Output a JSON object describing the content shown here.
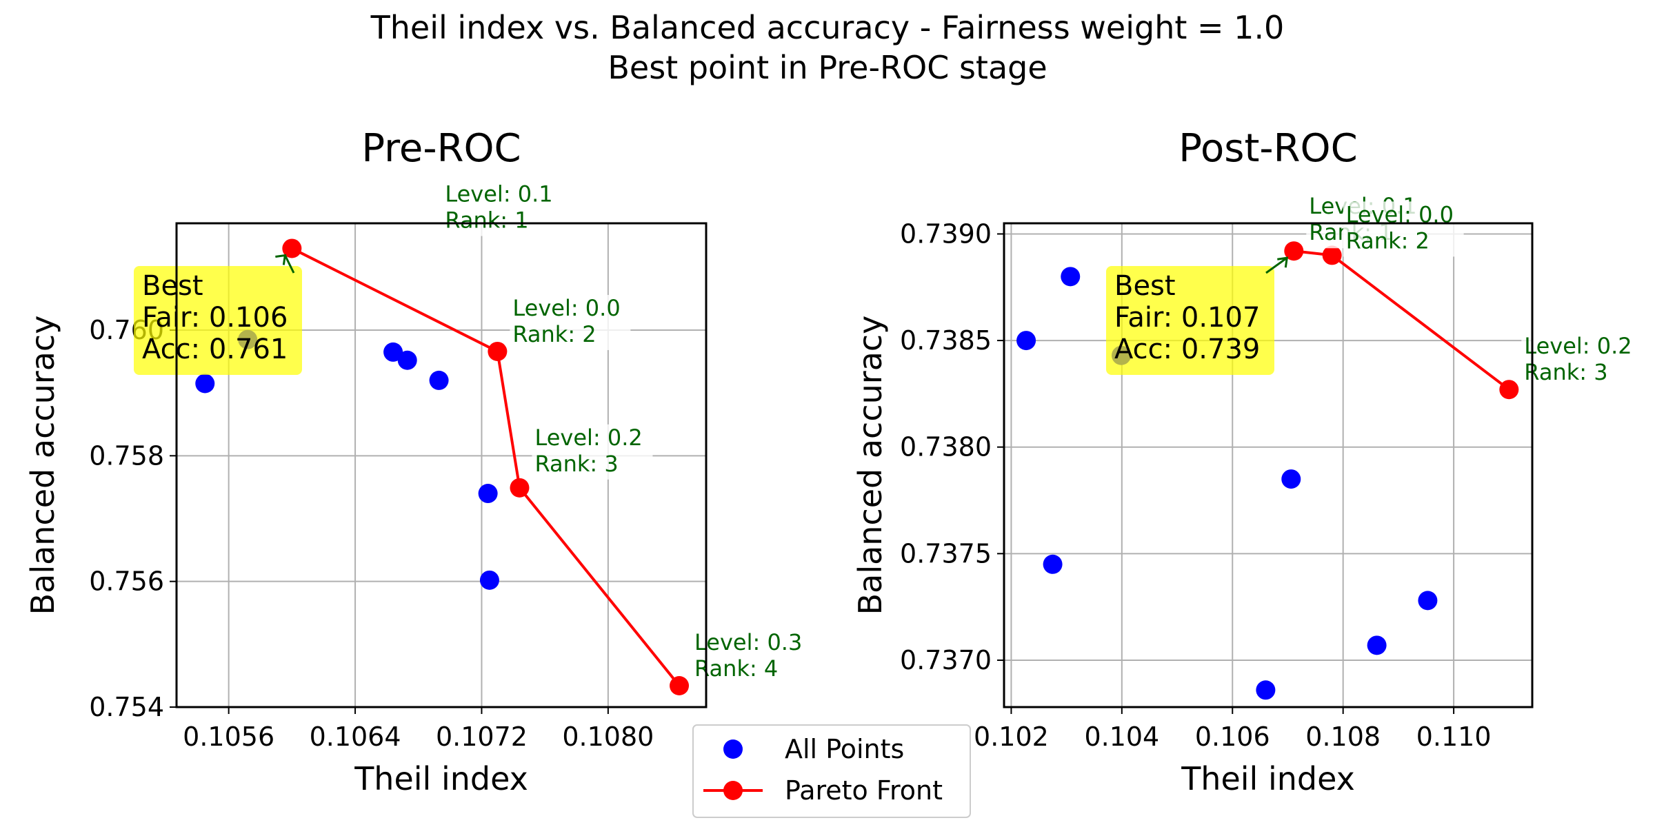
{
  "figure": {
    "suptitle_line1": "Theil index vs. Balanced accuracy - Fairness weight = 1.0",
    "suptitle_line2": "Best point in Pre-ROC stage"
  },
  "colors": {
    "all_points": "#0000ff",
    "pareto": "#ff0000",
    "annotation_text": "#006400",
    "best_box": "#ffff00",
    "grid": "#b0b0b0",
    "axes": "#000000"
  },
  "legend": {
    "all_points_label": "All Points",
    "pareto_label": "Pareto Front",
    "placement": "bottom-center"
  },
  "chart_data": [
    {
      "type": "scatter",
      "title": "Pre-ROC",
      "xlabel": "Theil index",
      "ylabel": "Balanced accuracy",
      "xlim": [
        0.10527,
        0.10862
      ],
      "ylim": [
        0.754,
        0.7617
      ],
      "xticks": [
        0.1056,
        0.1064,
        0.1072,
        0.108
      ],
      "xtick_labels": [
        "0.1056",
        "0.1064",
        "0.1072",
        "0.1080"
      ],
      "yticks": [
        0.754,
        0.756,
        0.758,
        0.76
      ],
      "ytick_labels": [
        "0.754",
        "0.756",
        "0.758",
        "0.760"
      ],
      "grid": true,
      "series": [
        {
          "name": "All Points",
          "points": [
            {
              "x": 0.10545,
              "y": 0.75915
            },
            {
              "x": 0.10572,
              "y": 0.75985
            },
            {
              "x": 0.10664,
              "y": 0.75965
            },
            {
              "x": 0.10673,
              "y": 0.75952
            },
            {
              "x": 0.10693,
              "y": 0.7592
            },
            {
              "x": 0.10724,
              "y": 0.7574
            },
            {
              "x": 0.10725,
              "y": 0.75602
            }
          ]
        },
        {
          "name": "Pareto Front",
          "points": [
            {
              "x": 0.106,
              "y": 0.7613
            },
            {
              "x": 0.1073,
              "y": 0.75966
            },
            {
              "x": 0.10744,
              "y": 0.75749
            },
            {
              "x": 0.10845,
              "y": 0.75434
            }
          ]
        }
      ],
      "annotations": [
        {
          "level": "Level: 0.1",
          "rank": "Rank: 1",
          "x": 0.106,
          "y": 0.7613
        },
        {
          "level": "Level: 0.0",
          "rank": "Rank: 2",
          "x": 0.1073,
          "y": 0.75966
        },
        {
          "level": "Level: 0.2",
          "rank": "Rank: 3",
          "x": 0.10744,
          "y": 0.75749
        },
        {
          "level": "Level: 0.3",
          "rank": "Rank: 4",
          "x": 0.10845,
          "y": 0.75434
        }
      ],
      "best": {
        "line1": "Best",
        "line2": "Fair: 0.106",
        "line3": "Acc: 0.761",
        "x": 0.106,
        "y": 0.7613
      }
    },
    {
      "type": "scatter",
      "title": "Post-ROC",
      "xlabel": "Theil index",
      "ylabel": "Balanced accuracy",
      "xlim": [
        0.10187,
        0.11142
      ],
      "ylim": [
        0.73678,
        0.73905
      ],
      "xticks": [
        0.102,
        0.104,
        0.106,
        0.108,
        0.11
      ],
      "xtick_labels": [
        "0.102",
        "0.104",
        "0.106",
        "0.108",
        "0.110"
      ],
      "yticks": [
        0.737,
        0.7375,
        0.738,
        0.7385,
        0.739
      ],
      "ytick_labels": [
        "0.7370",
        "0.7375",
        "0.7380",
        "0.7385",
        "0.7390"
      ],
      "grid": true,
      "series": [
        {
          "name": "All Points",
          "points": [
            {
              "x": 0.10227,
              "y": 0.7385
            },
            {
              "x": 0.10307,
              "y": 0.7388
            },
            {
              "x": 0.10399,
              "y": 0.73843
            },
            {
              "x": 0.10275,
              "y": 0.73745
            },
            {
              "x": 0.10706,
              "y": 0.73785
            },
            {
              "x": 0.1066,
              "y": 0.73686
            },
            {
              "x": 0.10861,
              "y": 0.73707
            },
            {
              "x": 0.10953,
              "y": 0.73728
            }
          ]
        },
        {
          "name": "Pareto Front",
          "points": [
            {
              "x": 0.10711,
              "y": 0.73892
            },
            {
              "x": 0.1078,
              "y": 0.7389
            },
            {
              "x": 0.111,
              "y": 0.73827
            }
          ]
        }
      ],
      "annotations": [
        {
          "level": "Level: 0.1",
          "rank": "Rank: 1",
          "x": 0.10711,
          "y": 0.73892
        },
        {
          "level": "Level: 0.0",
          "rank": "Rank: 2",
          "x": 0.1078,
          "y": 0.7389
        },
        {
          "level": "Level: 0.2",
          "rank": "Rank: 3",
          "x": 0.111,
          "y": 0.73827
        }
      ],
      "best": {
        "line1": "Best",
        "line2": "Fair: 0.107",
        "line3": "Acc: 0.739",
        "x": 0.10711,
        "y": 0.73892
      }
    }
  ]
}
